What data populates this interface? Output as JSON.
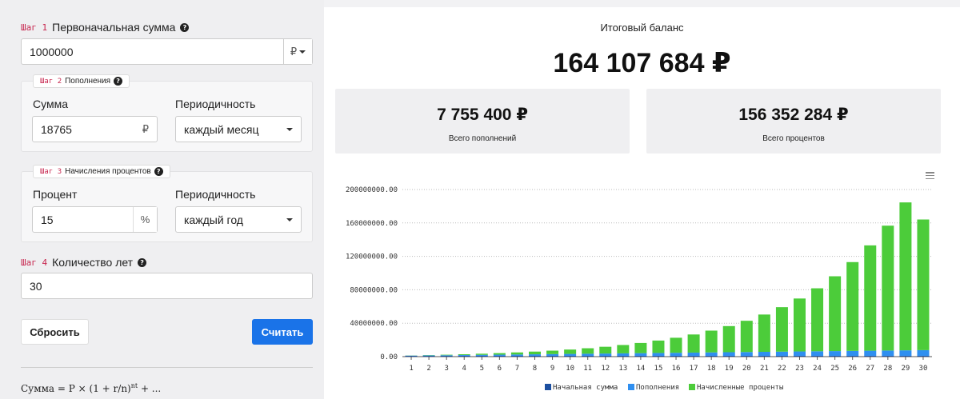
{
  "step_word": "Шаг",
  "initial": {
    "step": "1",
    "label": "Первоначальная сумма",
    "value": "1000000",
    "currency": "₽"
  },
  "deposits": {
    "step": "2",
    "legend": "Пополнения",
    "amount_label": "Сумма",
    "amount_value": "18765",
    "amount_unit": "₽",
    "period_label": "Периодичность",
    "period_value": "каждый месяц"
  },
  "interest": {
    "step": "3",
    "legend": "Начисления процентов",
    "rate_label": "Процент",
    "rate_value": "15",
    "rate_unit": "%",
    "period_label": "Периодичность",
    "period_value": "каждый год"
  },
  "years": {
    "step": "4",
    "label": "Количество лет",
    "value": "30"
  },
  "buttons": {
    "reset": "Сбросить",
    "calculate": "Считать"
  },
  "formula": {
    "lhs": "Сумма",
    "expr": "= P × (1 + r/n)",
    "exponent": "nt",
    "tail": "+ ..."
  },
  "result": {
    "title": "Итоговый баланс",
    "total": "164 107 684 ₽",
    "deposits_total": "7 755 400 ₽",
    "deposits_label": "Всего пополнений",
    "interest_total": "156 352 284 ₽",
    "interest_label": "Всего процентов"
  },
  "chart_data": {
    "type": "bar",
    "stacked": true,
    "categories": [
      "1",
      "2",
      "3",
      "4",
      "5",
      "6",
      "7",
      "8",
      "9",
      "10",
      "11",
      "12",
      "13",
      "14",
      "15",
      "16",
      "17",
      "18",
      "19",
      "20",
      "21",
      "22",
      "23",
      "24",
      "25",
      "26",
      "27",
      "28",
      "29",
      "30"
    ],
    "series": [
      {
        "name": "Начальная сумма",
        "color": "#1c4fa0",
        "values": [
          1000000,
          1000000,
          1000000,
          1000000,
          1000000,
          1000000,
          1000000,
          1000000,
          1000000,
          1000000,
          1000000,
          1000000,
          1000000,
          1000000,
          1000000,
          1000000,
          1000000,
          1000000,
          1000000,
          1000000,
          1000000,
          1000000,
          1000000,
          1000000,
          1000000,
          1000000,
          1000000,
          1000000,
          1000000,
          1000000
        ]
      },
      {
        "name": "Пополнения",
        "color": "#2f8ff0",
        "values": [
          225180,
          450360,
          675540,
          900720,
          1125900,
          1351080,
          1576260,
          1801440,
          2026620,
          2251800,
          2476980,
          2702160,
          2927340,
          3152520,
          3377700,
          3602880,
          3828060,
          4053240,
          4278420,
          4503600,
          4728780,
          4953960,
          5179140,
          5404320,
          5629500,
          5854680,
          6079860,
          6305040,
          6530220,
          6755400
        ]
      },
      {
        "name": "Начисленные проценты",
        "color": "#4ccc3a",
        "values": [
          150000,
          348800,
          605600,
          931300,
          1338600,
          1842600,
          2460800,
          3213700,
          4124800,
          5221600,
          6536600,
          8107900,
          9980600,
          12206600,
          14847200,
          17975600,
          21680200,
          26066600,
          31252600,
          37391900,
          44652100,
          53234000,
          63379000,
          75362000,
          89530000,
          106270000,
          126050000,
          149422000,
          177028000,
          156352284
        ]
      }
    ],
    "totals": [
      1375180,
      1799160,
      2281140,
      2832020,
      3464500,
      4193680,
      5037060,
      6015140,
      7151420,
      8473400,
      10013580,
      11810060,
      13907940,
      16359120,
      19225600,
      22578480,
      26508260,
      31119840,
      36531020,
      42895500,
      50380880,
      59188960,
      69558140,
      81766320,
      96159500,
      113124680,
      133129860,
      156727040,
      184558220,
      164107684
    ],
    "ylim": [
      0,
      200000000
    ],
    "yticks": [
      "0.00",
      "40000000.00",
      "80000000.00",
      "120000000.00",
      "160000000.00",
      "200000000.00"
    ],
    "legend_position": "bottom-center",
    "grid": true
  }
}
